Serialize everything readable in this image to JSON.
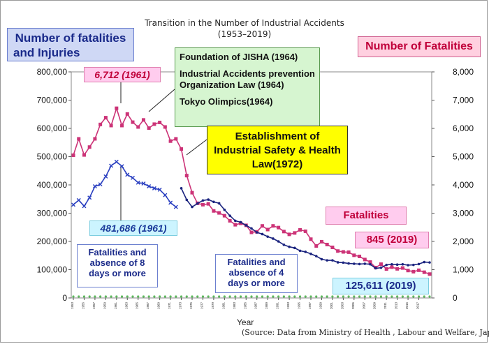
{
  "header": {
    "title": "Transition in the Number of Industrial Accidents",
    "subtitle": "(1953–2019)"
  },
  "axes": {
    "left_label_line1": "Number of fatalities",
    "left_label_line2": "and Injuries",
    "right_label": "Number of Fatalities",
    "x_label": "Year",
    "source": "(Source: Data from Ministry of Health , Labour and Welfare, Japan)"
  },
  "annotations": {
    "peak_fatalities": "6,712 (1961)",
    "peak_injuries": "481,686 (1961)",
    "jisha": "Foundation of JISHA (1964)",
    "law1964": "Industrial Accidents prevention Organization Law (1964)",
    "olympics": "Tokyo Olimpics(1964)",
    "ishl": "Establishment of Industrial Safety & Health Law(1972)",
    "fatalities_tag": "Fatalities",
    "fatalities_2019": "845 (2019)",
    "injuries_2019": "125,611 (2019)",
    "legend_8days": "Fatalities and absence of 8 days or more",
    "legend_4days": "Fatalities and absence of 4 days or more"
  },
  "colors": {
    "fatalities": "#cc3377",
    "injuries_8days": "#2a3fc0",
    "injuries_4days": "#1a237e",
    "left_label_bg": "#cfd8f5",
    "right_label_bg": "#ffd0e0",
    "jisha_bg": "#d6f5d0",
    "ishl_bg": "#ffff00"
  },
  "chart_data": {
    "type": "line",
    "x_start": 1953,
    "x_end": 2019,
    "y_left_ticks": [
      "0",
      "100,000",
      "200,000",
      "300,000",
      "400,000",
      "500,000",
      "600,000",
      "700,000",
      "800,000"
    ],
    "y_right_ticks": [
      "0",
      "1,000",
      "2,000",
      "3,000",
      "4,000",
      "5,000",
      "6,000",
      "7,000",
      "8,000"
    ],
    "ylim_left": [
      0,
      800000
    ],
    "ylim_right": [
      0,
      8000
    ],
    "x_tick_labels": [
      "1953",
      "1955",
      "1957",
      "1959",
      "1961",
      "1963",
      "1965",
      "1967",
      "1969",
      "1971",
      "1973",
      "1975",
      "1977",
      "1979",
      "1981",
      "1983",
      "1985",
      "1987",
      "1989",
      "1991",
      "1993",
      "1995",
      "1997",
      "1999",
      "2001",
      "2003",
      "2005",
      "2007",
      "2009",
      "2011",
      "2013",
      "2015",
      "2017"
    ],
    "series": [
      {
        "name": "Fatalities",
        "axis": "right",
        "x": [
          1953,
          1954,
          1955,
          1956,
          1957,
          1958,
          1959,
          1960,
          1961,
          1962,
          1963,
          1964,
          1965,
          1966,
          1967,
          1968,
          1969,
          1970,
          1971,
          1972,
          1973,
          1974,
          1975,
          1976,
          1977,
          1978,
          1979,
          1980,
          1981,
          1982,
          1983,
          1984,
          1985,
          1986,
          1987,
          1988,
          1989,
          1990,
          1991,
          1992,
          1993,
          1994,
          1995,
          1996,
          1997,
          1998,
          1999,
          2000,
          2001,
          2002,
          2003,
          2004,
          2005,
          2006,
          2007,
          2008,
          2009,
          2010,
          2011,
          2012,
          2013,
          2014,
          2015,
          2016,
          2017,
          2018,
          2019
        ],
        "values": [
          5050,
          5630,
          5060,
          5340,
          5630,
          6140,
          6380,
          6100,
          6712,
          6100,
          6510,
          6220,
          6050,
          6300,
          6010,
          6150,
          6210,
          6050,
          5550,
          5630,
          5270,
          4330,
          3725,
          3350,
          3300,
          3330,
          3080,
          3010,
          2910,
          2730,
          2590,
          2640,
          2570,
          2320,
          2340,
          2550,
          2420,
          2550,
          2490,
          2350,
          2250,
          2300,
          2410,
          2360,
          2080,
          1840,
          1990,
          1890,
          1790,
          1660,
          1630,
          1620,
          1510,
          1470,
          1360,
          1270,
          1075,
          1195,
          1025,
          1090,
          1030,
          1060,
          970,
          930,
          980,
          910,
          845
        ]
      },
      {
        "name": "Fatalities and absence of 8 days or more",
        "axis": "left",
        "x": [
          1953,
          1954,
          1955,
          1956,
          1957,
          1958,
          1959,
          1960,
          1961,
          1962,
          1963,
          1964,
          1965,
          1966,
          1967,
          1968,
          1969,
          1970,
          1971,
          1972
        ],
        "values": [
          330000,
          346000,
          325000,
          355000,
          395000,
          402000,
          430000,
          468000,
          481686,
          466000,
          436000,
          425000,
          408000,
          405000,
          395000,
          388000,
          383000,
          364000,
          337000,
          322000
        ]
      },
      {
        "name": "Fatalities and absence of 4 days or more",
        "axis": "left",
        "x": [
          1973,
          1974,
          1975,
          1976,
          1977,
          1978,
          1979,
          1980,
          1981,
          1982,
          1983,
          1984,
          1985,
          1986,
          1987,
          1988,
          1989,
          1990,
          1991,
          1992,
          1993,
          1994,
          1995,
          1996,
          1997,
          1998,
          1999,
          2000,
          2001,
          2002,
          2003,
          2004,
          2005,
          2006,
          2007,
          2008,
          2009,
          2010,
          2011,
          2012,
          2013,
          2014,
          2015,
          2016,
          2017,
          2018,
          2019
        ],
        "values": [
          388000,
          347000,
          322000,
          334000,
          345000,
          348000,
          340000,
          335000,
          312000,
          291000,
          273000,
          268000,
          257000,
          246000,
          232000,
          226000,
          217000,
          210000,
          200000,
          188000,
          181000,
          177000,
          167000,
          163000,
          156000,
          148000,
          137000,
          133000,
          133000,
          126000,
          125000,
          122000,
          121000,
          120000,
          121000,
          119000,
          105000,
          107000,
          117000,
          119000,
          118000,
          119000,
          116000,
          117000,
          120000,
          127000,
          125611
        ]
      }
    ]
  }
}
